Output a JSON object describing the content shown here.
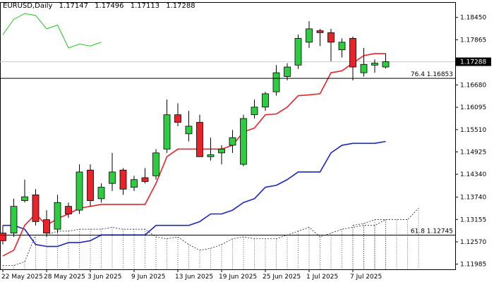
{
  "header": {
    "symbol": "EURUSD,Daily",
    "open": "1.17147",
    "high": "1.17496",
    "low": "1.17113",
    "close": "1.17288"
  },
  "chart_data": {
    "type": "candlestick",
    "symbol": "EURUSD",
    "timeframe": "Daily",
    "ylim": [
      1.1185,
      1.1885
    ],
    "y_ticks": [
      "1.18450",
      "1.17865",
      "1.17288",
      "1.16680",
      "1.16095",
      "1.15510",
      "1.14925",
      "1.14340",
      "1.13740",
      "1.13155",
      "1.12570",
      "1.11985"
    ],
    "x_tick_labels": [
      "22 May 2025",
      "28 May 2025",
      "3 Jun 2025",
      "9 Jun 2025",
      "13 Jun 2025",
      "19 Jun 2025",
      "25 Jun 2025",
      "1 Jul 2025",
      "7 Jul 2025"
    ],
    "x_tick_indices": [
      0,
      4,
      8,
      12,
      16,
      20,
      24,
      28,
      32
    ],
    "current_price": 1.17288,
    "current_price_label": "1.17288",
    "colors": {
      "bull": "#2ecc40",
      "bear": "#e8232a",
      "red_line": "#e8232a",
      "blue_line": "#1a24c8",
      "green_line": "#22c422",
      "grid_line": "#c8c8c8",
      "price_tag": "#000000"
    },
    "candles": [
      {
        "o": 1.128,
        "h": 1.13,
        "l": 1.125,
        "c": 1.126
      },
      {
        "o": 1.128,
        "h": 1.137,
        "l": 1.127,
        "c": 1.135
      },
      {
        "o": 1.1365,
        "h": 1.142,
        "l": 1.136,
        "c": 1.1375
      },
      {
        "o": 1.138,
        "h": 1.1395,
        "l": 1.13,
        "c": 1.131
      },
      {
        "o": 1.1315,
        "h": 1.134,
        "l": 1.127,
        "c": 1.128
      },
      {
        "o": 1.129,
        "h": 1.138,
        "l": 1.128,
        "c": 1.136
      },
      {
        "o": 1.135,
        "h": 1.136,
        "l": 1.132,
        "c": 1.133
      },
      {
        "o": 1.134,
        "h": 1.146,
        "l": 1.133,
        "c": 1.144
      },
      {
        "o": 1.1445,
        "h": 1.146,
        "l": 1.135,
        "c": 1.1365
      },
      {
        "o": 1.137,
        "h": 1.141,
        "l": 1.136,
        "c": 1.14
      },
      {
        "o": 1.141,
        "h": 1.149,
        "l": 1.139,
        "c": 1.144
      },
      {
        "o": 1.1445,
        "h": 1.145,
        "l": 1.138,
        "c": 1.1395
      },
      {
        "o": 1.14,
        "h": 1.143,
        "l": 1.139,
        "c": 1.142
      },
      {
        "o": 1.1425,
        "h": 1.145,
        "l": 1.141,
        "c": 1.1415
      },
      {
        "o": 1.143,
        "h": 1.15,
        "l": 1.142,
        "c": 1.149
      },
      {
        "o": 1.15,
        "h": 1.163,
        "l": 1.149,
        "c": 1.159
      },
      {
        "o": 1.159,
        "h": 1.162,
        "l": 1.156,
        "c": 1.157
      },
      {
        "o": 1.154,
        "h": 1.16,
        "l": 1.152,
        "c": 1.156
      },
      {
        "o": 1.157,
        "h": 1.159,
        "l": 1.148,
        "c": 1.148
      },
      {
        "o": 1.148,
        "h": 1.153,
        "l": 1.147,
        "c": 1.1485
      },
      {
        "o": 1.149,
        "h": 1.151,
        "l": 1.146,
        "c": 1.15
      },
      {
        "o": 1.151,
        "h": 1.155,
        "l": 1.149,
        "c": 1.153
      },
      {
        "o": 1.146,
        "h": 1.159,
        "l": 1.1455,
        "c": 1.158
      },
      {
        "o": 1.159,
        "h": 1.163,
        "l": 1.158,
        "c": 1.161
      },
      {
        "o": 1.161,
        "h": 1.165,
        "l": 1.16,
        "c": 1.1645
      },
      {
        "o": 1.165,
        "h": 1.172,
        "l": 1.164,
        "c": 1.17
      },
      {
        "o": 1.169,
        "h": 1.1725,
        "l": 1.168,
        "c": 1.1715
      },
      {
        "o": 1.172,
        "h": 1.18,
        "l": 1.171,
        "c": 1.179
      },
      {
        "o": 1.178,
        "h": 1.1835,
        "l": 1.1765,
        "c": 1.1815
      },
      {
        "o": 1.181,
        "h": 1.1815,
        "l": 1.177,
        "c": 1.1805
      },
      {
        "o": 1.1805,
        "h": 1.1815,
        "l": 1.173,
        "c": 1.178
      },
      {
        "o": 1.176,
        "h": 1.179,
        "l": 1.174,
        "c": 1.178
      },
      {
        "o": 1.179,
        "h": 1.1795,
        "l": 1.168,
        "c": 1.1715
      },
      {
        "o": 1.17,
        "h": 1.1765,
        "l": 1.169,
        "c": 1.1722
      },
      {
        "o": 1.172,
        "h": 1.1735,
        "l": 1.17,
        "c": 1.1725
      },
      {
        "o": 1.1715,
        "h": 1.175,
        "l": 1.1711,
        "c": 1.1729
      }
    ],
    "red_line": [
      1.122,
      1.1235,
      1.13,
      1.133,
      1.13,
      1.1318,
      1.133,
      1.1345,
      1.135,
      1.1355,
      1.1355,
      1.1355,
      1.1355,
      1.1355,
      1.141,
      1.148,
      1.15,
      1.15,
      1.15,
      1.15,
      1.15,
      1.151,
      1.1545,
      1.1555,
      1.159,
      1.1592,
      1.161,
      1.164,
      1.1642,
      1.1645,
      1.17,
      1.1705,
      1.1725,
      1.1745,
      1.175,
      1.175
    ],
    "blue_line": [
      1.13,
      1.13,
      1.129,
      1.125,
      1.1245,
      1.1245,
      1.1255,
      1.1255,
      1.126,
      1.1275,
      1.1275,
      1.1275,
      1.1275,
      1.1275,
      1.13,
      1.13,
      1.13,
      1.13,
      1.131,
      1.133,
      1.133,
      1.134,
      1.136,
      1.137,
      1.14,
      1.1405,
      1.142,
      1.144,
      1.144,
      1.144,
      1.149,
      1.151,
      1.1515,
      1.1515,
      1.1515,
      1.152
    ],
    "green_line": [
      1.18,
      1.184,
      1.1855,
      1.185,
      1.1815,
      1.1825,
      1.1765,
      1.1775,
      1.177,
      1.178
    ],
    "gray_line": [
      null,
      null,
      null,
      null,
      null,
      null,
      null,
      null,
      null,
      null,
      1.1728,
      1.1728,
      1.1728,
      1.1728,
      1.1728,
      1.1728,
      1.1728,
      1.1728,
      1.1728,
      1.1728,
      1.1728,
      1.1728,
      1.1728,
      1.1728,
      1.1728,
      1.1728,
      1.1728,
      1.1728,
      1.1728,
      1.1728,
      1.1728,
      1.1728,
      1.1728,
      1.1728,
      1.1728,
      1.1728
    ],
    "dotted_area_top": [
      1.1195,
      1.1195,
      1.1205,
      1.1275,
      1.1275,
      1.1285,
      1.1285,
      1.129,
      1.129,
      1.129,
      1.1295,
      1.129,
      1.129,
      1.129,
      1.127,
      1.1265,
      1.127,
      1.125,
      1.1235,
      1.124,
      1.125,
      1.1265,
      1.127,
      1.1265,
      1.1265,
      1.1265,
      1.1275,
      1.1285,
      1.1295,
      1.127,
      1.128,
      1.129,
      1.1295,
      1.13,
      1.13,
      1.1315
    ],
    "dotted_area_top2": [
      null,
      null,
      null,
      null,
      null,
      null,
      null,
      null,
      null,
      null,
      null,
      null,
      null,
      null,
      null,
      null,
      null,
      null,
      null,
      null,
      null,
      null,
      null,
      null,
      null,
      null,
      null,
      null,
      null,
      null,
      null,
      null,
      1.13,
      1.1305,
      1.1315,
      1.1315,
      1.1315,
      1.1315,
      1.1345
    ],
    "fib_levels": [
      {
        "label": "76.4 1.16853",
        "value": 1.16853
      },
      {
        "label": "61.8 1.12745",
        "value": 1.12745
      }
    ]
  }
}
